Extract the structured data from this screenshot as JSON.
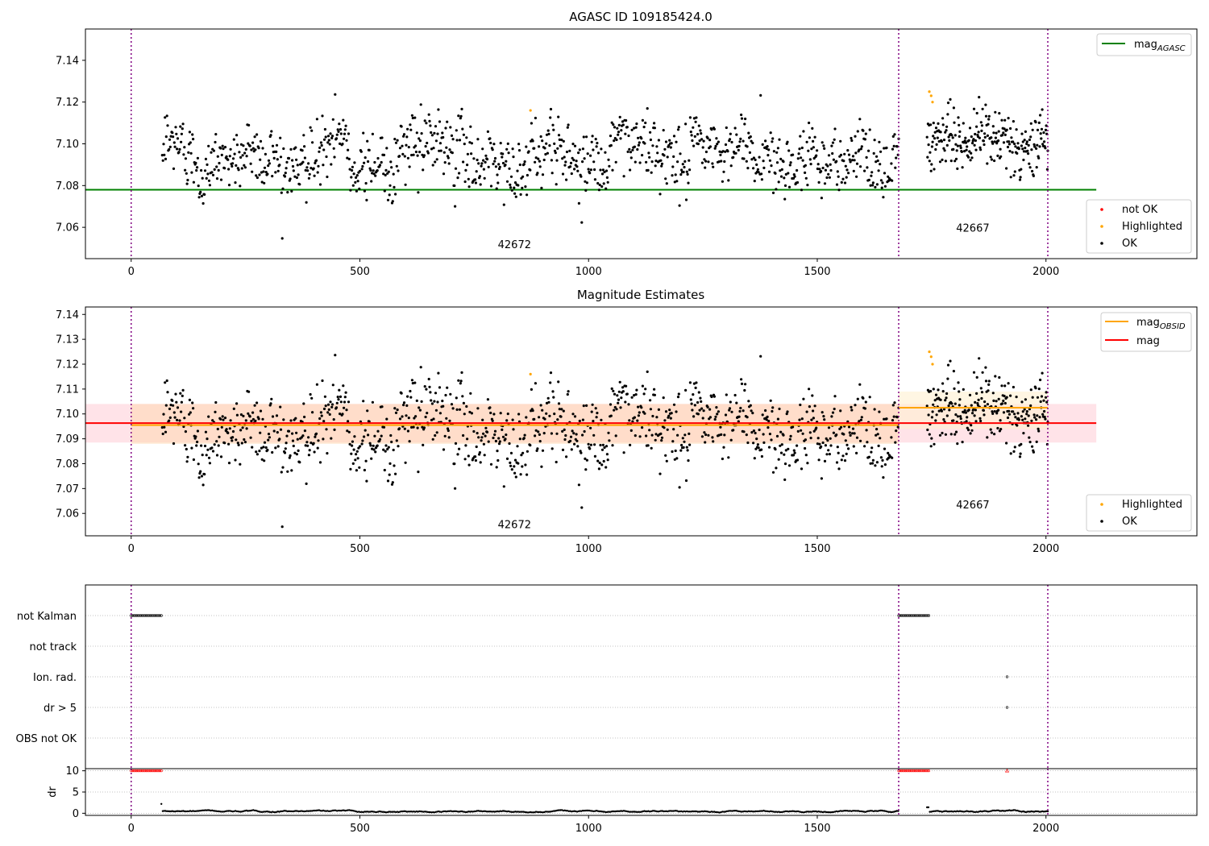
{
  "chart_data": [
    {
      "type": "scatter",
      "title": "AGASC ID 109185424.0",
      "xlabel": "",
      "ylabel": "",
      "xlim": [
        -100,
        2330
      ],
      "ylim": [
        7.045,
        7.155
      ],
      "xticks": [
        0,
        500,
        1000,
        1500,
        2000
      ],
      "yticks": [
        7.06,
        7.08,
        7.1,
        7.12,
        7.14
      ],
      "grid": false,
      "vlines": [
        0,
        1678,
        2004
      ],
      "hlines": [
        {
          "name": "mag_AGASC",
          "value": 7.078,
          "color": "#008000",
          "x_range": [
            -100,
            2110
          ]
        }
      ],
      "obsid_labels": [
        {
          "text": "42672",
          "x": 838,
          "y": 7.05
        },
        {
          "text": "42667",
          "x": 1840,
          "y": 7.058
        }
      ],
      "series": [
        {
          "name": "not OK",
          "color": "#ff0000",
          "points": []
        },
        {
          "name": "Highlighted",
          "color": "#ffa500",
          "points": [
            [
              873,
              7.116
            ],
            [
              1745,
              7.125
            ],
            [
              1749,
              7.123
            ],
            [
              1752,
              7.12
            ]
          ]
        },
        {
          "name": "OK",
          "color": "#000000",
          "segments": [
            {
              "x_start": 68,
              "x_end": 1678,
              "n": 1100,
              "mean": 7.095,
              "amp": 0.0065,
              "noise": 0.0075
            },
            {
              "x_start": 1740,
              "x_end": 2004,
              "n": 240,
              "mean": 7.102,
              "amp": 0.0035,
              "noise": 0.0065
            }
          ]
        }
      ],
      "legends": [
        {
          "placement": "upper right",
          "entries": [
            {
              "label": "mag_AGASC",
              "kind": "line",
              "color": "#008000"
            }
          ]
        },
        {
          "placement": "lower right",
          "entries": [
            {
              "label": "not OK",
              "kind": "dot",
              "color": "#ff0000"
            },
            {
              "label": "Highlighted",
              "kind": "dot",
              "color": "#ffa500"
            },
            {
              "label": "OK",
              "kind": "dot",
              "color": "#000000"
            }
          ]
        }
      ]
    },
    {
      "type": "scatter",
      "title": "Magnitude Estimates",
      "xlabel": "",
      "ylabel": "",
      "xlim": [
        -100,
        2330
      ],
      "ylim": [
        7.051,
        7.143
      ],
      "xticks": [
        0,
        500,
        1000,
        1500,
        2000
      ],
      "yticks": [
        7.06,
        7.07,
        7.08,
        7.09,
        7.1,
        7.11,
        7.12,
        7.13,
        7.14
      ],
      "grid": false,
      "vlines": [
        0,
        1678,
        2004
      ],
      "bands": [
        {
          "name": "mag",
          "color": "#ffc0cb",
          "opacity": 0.45,
          "x_range": [
            -100,
            2110
          ],
          "y_range": [
            7.0885,
            7.104
          ]
        },
        {
          "name": "mag_OBSID",
          "color": "#ffd8b0",
          "opacity": 0.55,
          "x_range": [
            0,
            1678
          ],
          "y_range": [
            7.088,
            7.104
          ]
        },
        {
          "name": "mag_OBSID",
          "color": "#fff0d0",
          "opacity": 0.6,
          "x_range": [
            1678,
            2004
          ],
          "y_range": [
            7.094,
            7.109
          ]
        }
      ],
      "hlines": [
        {
          "name": "mag_OBSID",
          "value": 7.0955,
          "color": "#ffa500",
          "x_range": [
            0,
            1678
          ]
        },
        {
          "name": "mag_OBSID",
          "value": 7.1025,
          "color": "#ffa500",
          "x_range": [
            1678,
            2004
          ]
        },
        {
          "name": "mag",
          "value": 7.0963,
          "color": "#ff0000",
          "x_range": [
            -100,
            2110
          ]
        }
      ],
      "obsid_labels": [
        {
          "text": "42672",
          "x": 838,
          "y": 7.054
        },
        {
          "text": "42667",
          "x": 1840,
          "y": 7.062
        }
      ],
      "series": [
        {
          "name": "Highlighted",
          "color": "#ffa500",
          "points": [
            [
              873,
              7.116
            ],
            [
              1745,
              7.125
            ],
            [
              1749,
              7.123
            ],
            [
              1752,
              7.12
            ]
          ]
        },
        {
          "name": "OK",
          "color": "#000000",
          "segments": [
            {
              "x_start": 68,
              "x_end": 1678,
              "n": 1100,
              "mean": 7.095,
              "amp": 0.0065,
              "noise": 0.0075
            },
            {
              "x_start": 1740,
              "x_end": 2004,
              "n": 240,
              "mean": 7.102,
              "amp": 0.0035,
              "noise": 0.0065
            }
          ]
        }
      ],
      "legends": [
        {
          "placement": "upper right",
          "entries": [
            {
              "label": "mag_OBSID",
              "kind": "line",
              "color": "#ffa500"
            },
            {
              "label": "mag",
              "kind": "line",
              "color": "#ff0000"
            }
          ]
        },
        {
          "placement": "lower right",
          "entries": [
            {
              "label": "Highlighted",
              "kind": "dot",
              "color": "#ffa500"
            },
            {
              "label": "OK",
              "kind": "dot",
              "color": "#000000"
            }
          ]
        }
      ]
    },
    {
      "type": "scatter",
      "title": "",
      "xlabel": "",
      "ylabel": "",
      "xlim": [
        -100,
        2330
      ],
      "categories": [
        "not Kalman",
        "not track",
        "Ion. rad.",
        "dr > 5",
        "OBS not OK"
      ],
      "grid": "dotted",
      "vlines": [
        0,
        1678,
        2004
      ],
      "flags": [
        {
          "category": "not Kalman",
          "ranges": [
            [
              0,
              68
            ],
            [
              1678,
              1745
            ]
          ]
        },
        {
          "category": "not track",
          "ranges": []
        },
        {
          "category": "Ion. rad.",
          "ranges": [
            [
              1915,
              1915
            ]
          ]
        },
        {
          "category": "dr > 5",
          "ranges": [
            [
              1915,
              1915
            ]
          ]
        },
        {
          "category": "OBS not OK",
          "ranges": []
        }
      ]
    },
    {
      "type": "scatter",
      "title": "",
      "xlabel": "",
      "ylabel": "dr",
      "xlim": [
        -100,
        2330
      ],
      "ylim": [
        -0.5,
        10.5
      ],
      "xticks": [
        0,
        500,
        1000,
        1500,
        2000
      ],
      "yticks": [
        0,
        5,
        10
      ],
      "grid": "dotted",
      "vlines": [
        0,
        1678,
        2004
      ],
      "clipped_markers": {
        "value": 10,
        "color": "#ff0000",
        "ranges": [
          [
            0,
            68
          ],
          [
            1678,
            1745
          ]
        ],
        "points": [
          1915
        ]
      },
      "series": [
        {
          "name": "dr",
          "color": "#000000",
          "segments": [
            {
              "x_start": 66,
              "x_end": 1678,
              "step": 3,
              "mean": 0.45,
              "amp": 0.25,
              "spike": {
                "x": 66,
                "y": 2.2
              }
            },
            {
              "x_start": 1740,
              "x_end": 2004,
              "step": 3,
              "mean": 0.4,
              "amp": 0.25,
              "spike": {
                "x": 1742,
                "y": 1.4
              }
            }
          ]
        }
      ]
    }
  ]
}
